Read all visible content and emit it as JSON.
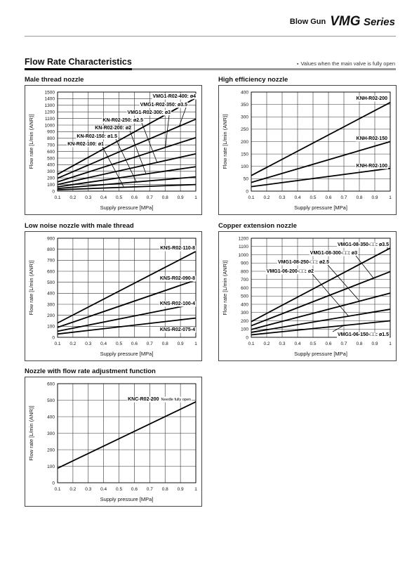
{
  "header": {
    "prefix": "Blow Gun",
    "series_code": "VMG",
    "series_word": "Series"
  },
  "section": {
    "title": "Flow Rate Characteristics",
    "note_bullet": "▪",
    "note": "Values when the main valve is fully open"
  },
  "chart_data": [
    {
      "type": "line",
      "title": "Male thread nozzle",
      "xlabel": "Supply pressure [MPa]",
      "ylabel": "Flow rate [L/min (ANR)]",
      "xlim": [
        0.1,
        1
      ],
      "ylim": [
        0,
        1500
      ],
      "xticks": [
        "0.1",
        "0.2",
        "0.3",
        "0.4",
        "0.5",
        "0.6",
        "0.7",
        "0.8",
        "0.9",
        "1"
      ],
      "yticks": [
        "0",
        "100",
        "200",
        "300",
        "400",
        "500",
        "600",
        "700",
        "800",
        "900",
        "1000",
        "1100",
        "1200",
        "1300",
        "1400",
        "1500"
      ],
      "grid": true,
      "series": [
        {
          "name": "VMG1-R02-400: ø4",
          "x": [
            0.1,
            1
          ],
          "y": [
            255,
            1410
          ]
        },
        {
          "name": "VMG1-R02-350: ø3.5",
          "x": [
            0.1,
            1
          ],
          "y": [
            195,
            1090
          ]
        },
        {
          "name": "VMG1-R02-300: ø3",
          "x": [
            0.1,
            1
          ],
          "y": [
            140,
            810
          ]
        },
        {
          "name": "KN-R02-250: ø2.5",
          "x": [
            0.1,
            1
          ],
          "y": [
            100,
            565
          ]
        },
        {
          "name": "KN-R02-200: ø2",
          "x": [
            0.1,
            1
          ],
          "y": [
            65,
            370
          ]
        },
        {
          "name": "KN-R02-150: ø1.5",
          "x": [
            0.1,
            1
          ],
          "y": [
            40,
            215
          ]
        },
        {
          "name": "KN-R02-100: ø1",
          "x": [
            0.1,
            1
          ],
          "y": [
            20,
            100
          ]
        }
      ]
    },
    {
      "type": "line",
      "title": "High efficiency nozzle",
      "xlabel": "Supply pressure [MPa]",
      "ylabel": "Flow rate [L/min (ANR)]",
      "xlim": [
        0.1,
        1
      ],
      "ylim": [
        0,
        400
      ],
      "xticks": [
        "0.1",
        "0.2",
        "0.3",
        "0.4",
        "0.5",
        "0.6",
        "0.7",
        "0.8",
        "0.9",
        "1"
      ],
      "yticks": [
        "0",
        "50",
        "100",
        "150",
        "200",
        "250",
        "300",
        "350",
        "400"
      ],
      "grid": true,
      "series": [
        {
          "name": "KNH-R02-200",
          "x": [
            0.1,
            1
          ],
          "y": [
            63,
            358
          ]
        },
        {
          "name": "KNH-R02-150",
          "x": [
            0.1,
            1
          ],
          "y": [
            35,
            200
          ]
        },
        {
          "name": "KNH-R02-100",
          "x": [
            0.1,
            1
          ],
          "y": [
            18,
            92
          ]
        }
      ]
    },
    {
      "type": "line",
      "title": "Low noise nozzle with male thread",
      "xlabel": "Supply pressure [MPa]",
      "ylabel": "Flow rate [L/min (ANR)]",
      "xlim": [
        0.1,
        1
      ],
      "ylim": [
        0,
        900
      ],
      "xticks": [
        "0.1",
        "0.2",
        "0.3",
        "0.4",
        "0.5",
        "0.6",
        "0.7",
        "0.8",
        "0.9",
        "1"
      ],
      "yticks": [
        "0",
        "100",
        "200",
        "300",
        "400",
        "500",
        "600",
        "700",
        "800",
        "900"
      ],
      "grid": true,
      "series": [
        {
          "name": "KNS-R02-110-8",
          "x": [
            0.1,
            1
          ],
          "y": [
            130,
            780
          ]
        },
        {
          "name": "KNS-R02-090-8",
          "x": [
            0.1,
            1
          ],
          "y": [
            90,
            520
          ]
        },
        {
          "name": "KNS-R02-100-4",
          "x": [
            0.1,
            1
          ],
          "y": [
            55,
            305
          ]
        },
        {
          "name": "KNS-R02-075-4",
          "x": [
            0.1,
            1
          ],
          "y": [
            30,
            175
          ]
        }
      ]
    },
    {
      "type": "line",
      "title": "Copper extension nozzle",
      "xlabel": "Supply pressure [MPa]",
      "ylabel": "Flow rate [L/min (ANR)]",
      "xlim": [
        0.1,
        1
      ],
      "ylim": [
        0,
        1200
      ],
      "xticks": [
        "0.1",
        "0.2",
        "0.3",
        "0.4",
        "0.5",
        "0.6",
        "0.7",
        "0.8",
        "0.9",
        "1"
      ],
      "yticks": [
        "0",
        "100",
        "200",
        "300",
        "400",
        "500",
        "600",
        "700",
        "800",
        "900",
        "1000",
        "1100",
        "1200"
      ],
      "grid": true,
      "series": [
        {
          "name": "VMG1-08-350-□□: ø3.5",
          "x": [
            0.1,
            1
          ],
          "y": [
            190,
            1080
          ]
        },
        {
          "name": "VMG1-08-300-□□: ø3",
          "x": [
            0.1,
            1
          ],
          "y": [
            140,
            795
          ]
        },
        {
          "name": "VMG1-08-250-□□: ø2.5",
          "x": [
            0.1,
            1
          ],
          "y": [
            95,
            535
          ]
        },
        {
          "name": "VMG1-06-200-□□: ø2",
          "x": [
            0.1,
            1
          ],
          "y": [
            60,
            340
          ]
        },
        {
          "name": "VMG1-06-150-□□: ø1.5",
          "x": [
            0.1,
            1
          ],
          "y": [
            30,
            200
          ]
        }
      ]
    },
    {
      "type": "line",
      "title": "Nozzle with flow rate adjustment function",
      "xlabel": "Supply pressure [MPa]",
      "ylabel": "Flow rate [L/min (ANR)]",
      "xlim": [
        0.1,
        1
      ],
      "ylim": [
        0,
        600
      ],
      "xticks": [
        "0.1",
        "0.2",
        "0.3",
        "0.4",
        "0.5",
        "0.6",
        "0.7",
        "0.8",
        "0.9",
        "1"
      ],
      "yticks": [
        "0",
        "100",
        "200",
        "300",
        "400",
        "500",
        "600"
      ],
      "grid": true,
      "series": [
        {
          "name": "KNC-R02-200",
          "note": "Needle fully open",
          "x": [
            0.1,
            1
          ],
          "y": [
            88,
            490
          ]
        }
      ]
    }
  ]
}
